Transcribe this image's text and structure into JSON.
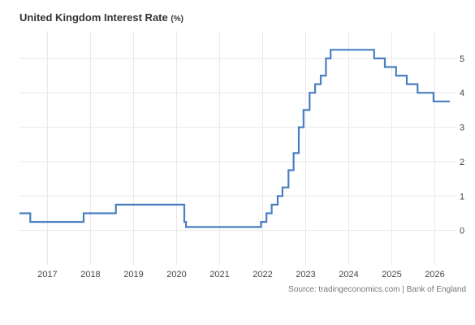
{
  "title": "United Kingdom Interest Rate",
  "unit": "(%)",
  "source": "Source: tradingeconomics.com | Bank of England",
  "chart_data": {
    "type": "line",
    "step": true,
    "title": "United Kingdom Interest Rate (%)",
    "xlim": [
      2016.35,
      2026.5
    ],
    "ylim": [
      -1,
      5.8
    ],
    "x_ticks": [
      2017,
      2018,
      2019,
      2020,
      2021,
      2022,
      2023,
      2024,
      2025,
      2026
    ],
    "x_tick_labels": [
      "2017",
      "2018",
      "2019",
      "2020",
      "2021",
      "2022",
      "2023",
      "2024",
      "2025",
      "2026"
    ],
    "y_ticks": [
      0,
      1,
      2,
      3,
      4,
      5
    ],
    "y_tick_labels": [
      "0",
      "1",
      "2",
      "3",
      "4",
      "5"
    ],
    "y_axis_position": "right",
    "grid": true,
    "color": "#4a7fc1",
    "series": [
      {
        "x": [
          2016.35,
          2016.6,
          2017.84,
          2018.59,
          2020.18,
          2020.22,
          2021.96,
          2022.09,
          2022.21,
          2022.35,
          2022.46,
          2022.6,
          2022.72,
          2022.84,
          2022.95,
          2023.09,
          2023.22,
          2023.35,
          2023.47,
          2023.58,
          2024.59,
          2024.84,
          2025.1,
          2025.35,
          2025.6,
          2025.97,
          2026.35
        ],
        "y": [
          0.5,
          0.25,
          0.5,
          0.75,
          0.25,
          0.1,
          0.25,
          0.5,
          0.75,
          1.0,
          1.25,
          1.75,
          2.25,
          3.0,
          3.5,
          4.0,
          4.25,
          4.5,
          5.0,
          5.25,
          5.0,
          4.75,
          4.5,
          4.25,
          4.0,
          3.75,
          3.75
        ]
      }
    ]
  }
}
